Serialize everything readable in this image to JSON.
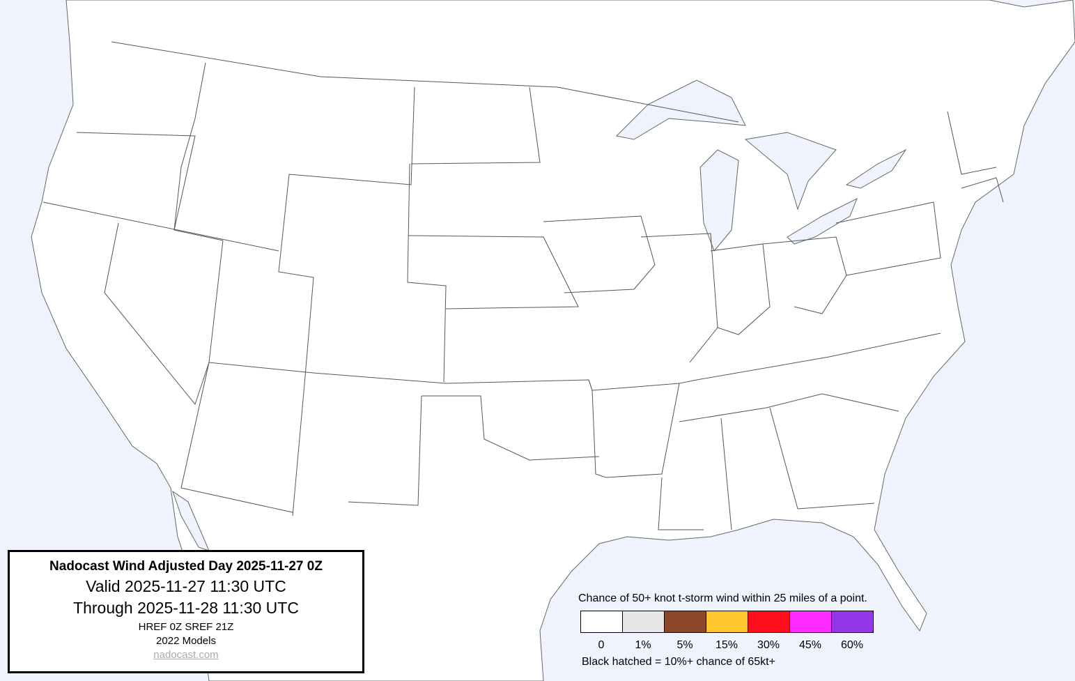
{
  "title_box": {
    "title": "Nadocast Wind Adjusted Day 2025-11-27 0Z",
    "valid": "Valid 2025-11-27 11:30 UTC",
    "through": "Through 2025-11-28 11:30 UTC",
    "models_run": "HREF 0Z SREF 21Z",
    "models_version": "2022 Models",
    "link": "nadocast.com"
  },
  "legend": {
    "caption": "Chance of 50+ knot t-storm wind within 25 miles of a point.",
    "bins": [
      {
        "label": "0",
        "color": "#ffffff"
      },
      {
        "label": "1%",
        "color": "#e6e6e6"
      },
      {
        "label": "5%",
        "color": "#8a472a"
      },
      {
        "label": "15%",
        "color": "#ffc62e"
      },
      {
        "label": "30%",
        "color": "#ff0f1e"
      },
      {
        "label": "45%",
        "color": "#ff2cff"
      },
      {
        "label": "60%",
        "color": "#9437e9"
      }
    ],
    "note": "Black hatched = 10%+ chance of 65kt+"
  },
  "map": {
    "water_color": "#eef3fd",
    "land_color": "#ffffff",
    "border_color": "#555555",
    "forecast_areas": []
  }
}
